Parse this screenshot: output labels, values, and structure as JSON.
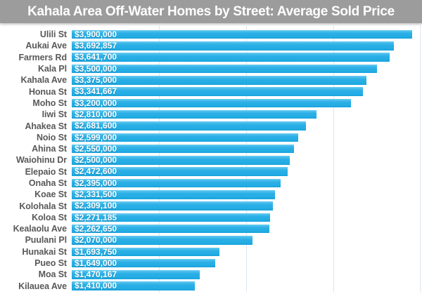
{
  "title": "Kahala Area Off-Water Homes by Street: Average Sold Price",
  "chart_data": {
    "type": "bar",
    "orientation": "horizontal",
    "title": "Kahala Area Off-Water Homes by Street: Average Sold Price",
    "categories": [
      "Ulili St",
      "Aukai Ave",
      "Farmers Rd",
      "Kala Pl",
      "Kahala Ave",
      "Honua St",
      "Moho St",
      "Iiwi St",
      "Ahakea St",
      "Noio St",
      "Ahina St",
      "Waiohinu Dr",
      "Elepaio St",
      "Onaha St",
      "Koae St",
      "Kolohala St",
      "Koloa St",
      "Kealaolu Ave",
      "Puulani Pl",
      "Hunakai St",
      "Pueo St",
      "Moa St",
      "Kilauea Ave"
    ],
    "values": [
      3900000,
      3692857,
      3641700,
      3500000,
      3375000,
      3341667,
      3200000,
      2810000,
      2681600,
      2599000,
      2550000,
      2500000,
      2472600,
      2395000,
      2331500,
      2309100,
      2271185,
      2262650,
      2070000,
      1693750,
      1649000,
      1470167,
      1410000
    ],
    "value_labels": [
      "$3,900,000",
      "$3,692,857",
      "$3,641,700",
      "$3,500,000",
      "$3,375,000",
      "$3,341,667",
      "$3,200,000",
      "$2,810,000",
      "$2,681,600",
      "$2,599,000",
      "$2,550,000",
      "$2,500,000",
      "$2,472,600",
      "$2,395,000",
      "$2,331,500",
      "$2,309,100",
      "$2,271,185",
      "$2,262,650",
      "$2,070,000",
      "$1,693,750",
      "$1,649,000",
      "$1,470,167",
      "$1,410,000"
    ],
    "xlim": [
      0,
      4000000
    ],
    "gridline_interval": 1000000,
    "grid": "vertical gridlines only",
    "legend": "none",
    "colors": {
      "bar": "#29AEE4",
      "title_background": "#9C9C9C",
      "title_text": "#FFFFFF",
      "category_label": "#595959",
      "value_label": "#FFFFFF",
      "gridline": "#DDE6F2",
      "background": "#FFFFFF"
    }
  }
}
